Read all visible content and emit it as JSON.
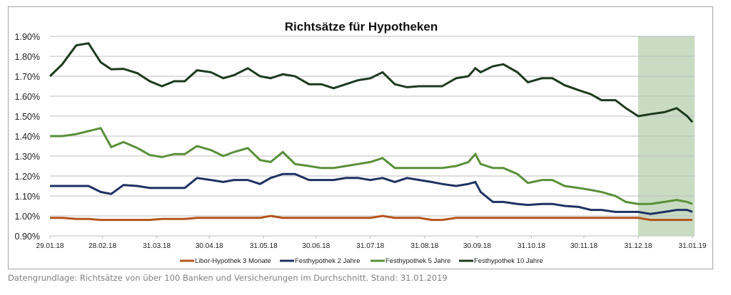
{
  "caption": "Datengrundlage: Richtsätze von über 100 Banken und Versicherungen im Durchschnitt. Stand: 31.01.2019",
  "chart_data": {
    "type": "line",
    "title": "Richtsätze für Hypotheken",
    "xlabel": "",
    "ylabel": "",
    "x_unit": "days since 29.01.18",
    "x_start_date": "29.01.18",
    "xlim": [
      0,
      367
    ],
    "ylim": [
      0.9,
      1.9
    ],
    "grid": true,
    "legend_position": "bottom",
    "y_ticks": [
      {
        "value": 1.9,
        "label": "1.90%"
      },
      {
        "value": 1.8,
        "label": "1.80%"
      },
      {
        "value": 1.7,
        "label": "1.70%"
      },
      {
        "value": 1.6,
        "label": "1.60%"
      },
      {
        "value": 1.5,
        "label": "1.50%"
      },
      {
        "value": 1.4,
        "label": "1.40%"
      },
      {
        "value": 1.3,
        "label": "1.30%"
      },
      {
        "value": 1.2,
        "label": "1.20%"
      },
      {
        "value": 1.1,
        "label": "1.10%"
      },
      {
        "value": 1.0,
        "label": "1.00%"
      },
      {
        "value": 0.9,
        "label": "0.90%"
      }
    ],
    "x_ticks": [
      {
        "value": 0,
        "label": "29.01.18"
      },
      {
        "value": 30,
        "label": "28.02.18"
      },
      {
        "value": 61,
        "label": "31.03.18"
      },
      {
        "value": 91,
        "label": "30.04.18"
      },
      {
        "value": 122,
        "label": "31.05.18"
      },
      {
        "value": 152,
        "label": "30.06.18"
      },
      {
        "value": 183,
        "label": "31.07.18"
      },
      {
        "value": 214,
        "label": "31.08.18"
      },
      {
        "value": 244,
        "label": "30.09.18"
      },
      {
        "value": 275,
        "label": "31.10.18"
      },
      {
        "value": 305,
        "label": "30.11.18"
      },
      {
        "value": 336,
        "label": "31.12.18"
      },
      {
        "value": 367,
        "label": "31.01.19"
      }
    ],
    "highlight_range": {
      "from": 336,
      "to": 367,
      "color": "#c9dcc3"
    },
    "x": [
      0,
      7,
      15,
      22,
      29,
      35,
      42,
      50,
      57,
      64,
      71,
      77,
      84,
      92,
      99,
      105,
      113,
      120,
      126,
      133,
      140,
      148,
      155,
      162,
      169,
      176,
      183,
      190,
      197,
      204,
      211,
      218,
      224,
      232,
      239,
      243,
      246,
      253,
      259,
      267,
      273,
      281,
      287,
      294,
      302,
      309,
      315,
      323,
      329,
      336,
      343,
      351,
      358,
      364,
      367
    ],
    "series": [
      {
        "name": "Libor-Hypothek 3 Monate",
        "color": "#b5541b",
        "values": [
          0.99,
          0.99,
          0.985,
          0.985,
          0.98,
          0.98,
          0.98,
          0.98,
          0.98,
          0.985,
          0.985,
          0.985,
          0.99,
          0.99,
          0.99,
          0.99,
          0.99,
          0.99,
          1.0,
          0.99,
          0.99,
          0.99,
          0.99,
          0.99,
          0.99,
          0.99,
          0.99,
          1.0,
          0.99,
          0.99,
          0.99,
          0.98,
          0.98,
          0.99,
          0.99,
          0.99,
          0.99,
          0.99,
          0.99,
          0.99,
          0.99,
          0.99,
          0.99,
          0.99,
          0.99,
          0.99,
          0.99,
          0.99,
          0.99,
          0.99,
          0.98,
          0.98,
          0.98,
          0.98,
          0.98
        ]
      },
      {
        "name": "Festhypothek 2 Jahre",
        "color": "#1f3162",
        "values": [
          1.15,
          1.15,
          1.15,
          1.15,
          1.12,
          1.11,
          1.155,
          1.15,
          1.14,
          1.14,
          1.14,
          1.14,
          1.19,
          1.18,
          1.17,
          1.18,
          1.18,
          1.16,
          1.19,
          1.21,
          1.21,
          1.18,
          1.18,
          1.18,
          1.19,
          1.19,
          1.18,
          1.19,
          1.17,
          1.19,
          1.18,
          1.17,
          1.16,
          1.15,
          1.16,
          1.17,
          1.12,
          1.07,
          1.07,
          1.06,
          1.055,
          1.06,
          1.06,
          1.05,
          1.045,
          1.03,
          1.03,
          1.02,
          1.02,
          1.02,
          1.01,
          1.02,
          1.03,
          1.03,
          1.02
        ]
      },
      {
        "name": "Festhypothek 5 Jahre",
        "color": "#5a8f3a",
        "values": [
          1.4,
          1.4,
          1.41,
          1.425,
          1.44,
          1.345,
          1.37,
          1.34,
          1.305,
          1.295,
          1.31,
          1.31,
          1.35,
          1.33,
          1.3,
          1.32,
          1.34,
          1.28,
          1.27,
          1.32,
          1.26,
          1.25,
          1.24,
          1.24,
          1.25,
          1.26,
          1.27,
          1.29,
          1.24,
          1.24,
          1.24,
          1.24,
          1.24,
          1.25,
          1.27,
          1.31,
          1.26,
          1.24,
          1.24,
          1.21,
          1.165,
          1.18,
          1.18,
          1.15,
          1.14,
          1.13,
          1.12,
          1.1,
          1.07,
          1.06,
          1.06,
          1.07,
          1.08,
          1.07,
          1.06
        ]
      },
      {
        "name": "Festhypothek 10 Jahre",
        "color": "#1d3a1f",
        "values": [
          1.7,
          1.76,
          1.855,
          1.865,
          1.77,
          1.735,
          1.737,
          1.715,
          1.675,
          1.65,
          1.675,
          1.675,
          1.73,
          1.72,
          1.69,
          1.705,
          1.74,
          1.7,
          1.69,
          1.71,
          1.7,
          1.66,
          1.66,
          1.64,
          1.66,
          1.68,
          1.69,
          1.72,
          1.66,
          1.645,
          1.65,
          1.65,
          1.65,
          1.69,
          1.7,
          1.74,
          1.72,
          1.75,
          1.76,
          1.72,
          1.67,
          1.69,
          1.69,
          1.655,
          1.63,
          1.61,
          1.58,
          1.58,
          1.54,
          1.5,
          1.51,
          1.52,
          1.54,
          1.5,
          1.47
        ]
      }
    ]
  }
}
